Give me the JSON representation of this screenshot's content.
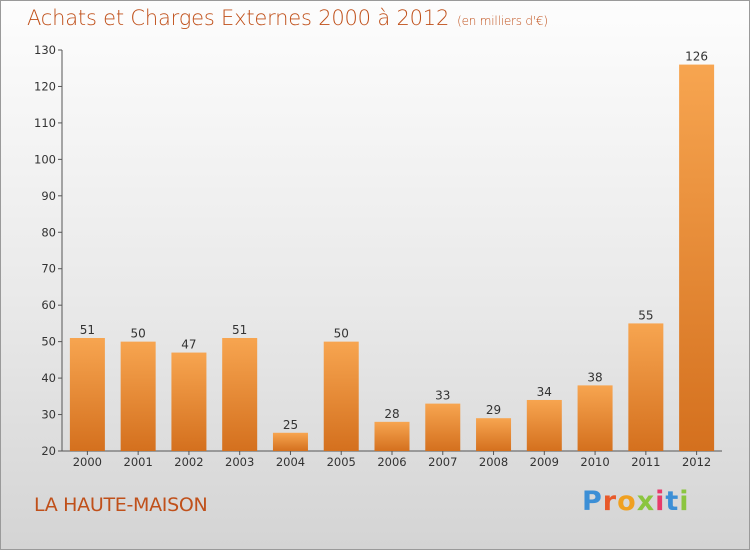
{
  "page": {
    "title": "Achats et Charges Externes 2000 à 2012",
    "subtitle": "(en milliers d'€)",
    "commune": "LA HAUTE-MAISON",
    "logo_letters": [
      "P",
      "r",
      "o",
      "x",
      "i",
      "t",
      "i"
    ],
    "logo_colors": [
      "#3c8fd6",
      "#e85a2a",
      "#f0a020",
      "#8bc53f",
      "#e83a6a",
      "#3c8fd6",
      "#8bc53f"
    ]
  },
  "chart_data": {
    "type": "bar",
    "title": "Achats et Charges Externes 2000 à 2012",
    "subtitle": "(en milliers d'€)",
    "categories": [
      "2000",
      "2001",
      "2002",
      "2003",
      "2004",
      "2005",
      "2006",
      "2007",
      "2008",
      "2009",
      "2010",
      "2011",
      "2012"
    ],
    "values": [
      51,
      50,
      47,
      51,
      25,
      50,
      28,
      33,
      29,
      34,
      38,
      55,
      126
    ],
    "ylim": [
      20,
      130
    ],
    "yticks": [
      20,
      30,
      40,
      50,
      60,
      70,
      80,
      90,
      100,
      110,
      120,
      130
    ],
    "grid": false,
    "legend": "none",
    "colors": {
      "bar_top": "#f7a550",
      "bar_bottom": "#d4701e",
      "axis": "#555555",
      "text": "#c0501a"
    }
  }
}
